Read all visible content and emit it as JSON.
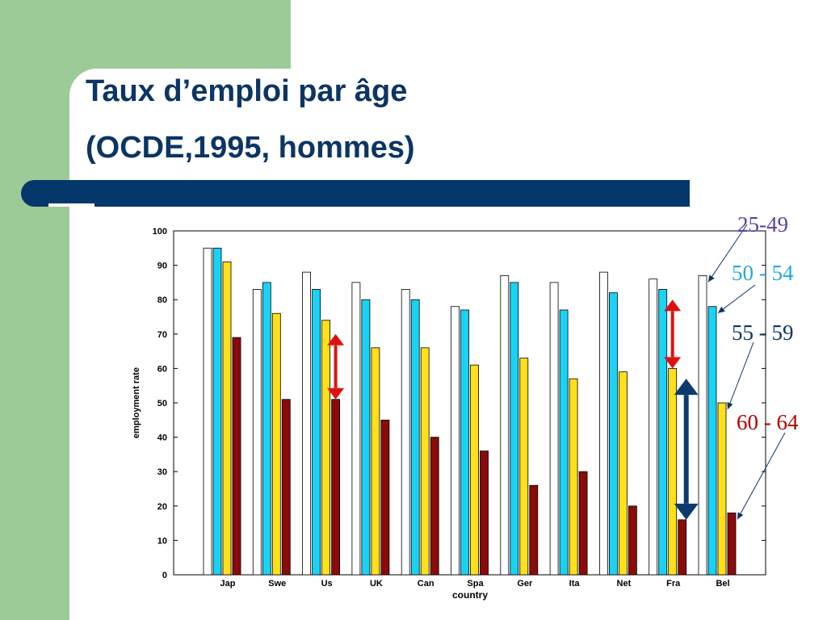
{
  "slide": {
    "title_line1": "Taux d’emploi par âge",
    "title_line2": "(OCDE,1995, hommes)"
  },
  "colors": {
    "panel_green": "#9ccb98",
    "title_navy": "#0b3564",
    "bar_navy": "#04386b",
    "arrow_red": "#e01010",
    "arrow_navy": "#0d3a6e"
  },
  "chart_data": {
    "type": "bar",
    "xlabel": "country",
    "ylabel": "employment rate",
    "ylim": [
      0,
      100
    ],
    "yticks": [
      0,
      10,
      20,
      30,
      40,
      50,
      60,
      70,
      80,
      90,
      100
    ],
    "grid": false,
    "categories": [
      "Jap",
      "Swe",
      "Us",
      "UK",
      "Can",
      "Spa",
      "Ger",
      "Ita",
      "Net",
      "Fra",
      "Bel"
    ],
    "series": [
      {
        "name": "25-49",
        "color": "#ffffff",
        "values": [
          95,
          83,
          88,
          85,
          83,
          78,
          87,
          85,
          88,
          86,
          87
        ]
      },
      {
        "name": "50 - 54",
        "color": "#19d3f5",
        "values": [
          95,
          85,
          83,
          80,
          80,
          77,
          85,
          77,
          82,
          83,
          78
        ]
      },
      {
        "name": "55 - 59",
        "color": "#ffe01a",
        "values": [
          91,
          76,
          74,
          66,
          66,
          61,
          63,
          57,
          59,
          60,
          50
        ]
      },
      {
        "name": "60 - 64",
        "color": "#8b0a0a",
        "values": [
          69,
          51,
          51,
          45,
          40,
          36,
          26,
          30,
          20,
          16,
          18
        ]
      }
    ],
    "legend": [
      {
        "label": "25-49",
        "color": "#5b3fa6"
      },
      {
        "label": "50 - 54",
        "color": "#22a9e0"
      },
      {
        "label": "55 - 59",
        "color": "#0b3564"
      },
      {
        "label": "60 - 64",
        "color": "#b00000"
      }
    ],
    "annotations": [
      {
        "type": "double-arrow",
        "color": "red",
        "category": "Us",
        "from": 51,
        "to": 70
      },
      {
        "type": "double-arrow",
        "color": "red",
        "category": "Fra",
        "from": 60,
        "to": 80
      },
      {
        "type": "double-arrow",
        "color": "navy",
        "category": "Fra",
        "from": 16,
        "to": 57
      }
    ]
  }
}
